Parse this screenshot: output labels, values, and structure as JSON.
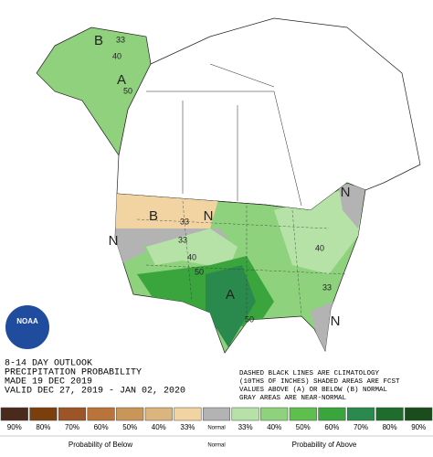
{
  "header": {
    "lines": [
      "8-14 DAY OUTLOOK",
      "PRECIPITATION PROBABILITY",
      "MADE  19 DEC 2019",
      "VALID  DEC 27, 2019 - JAN 02, 2020"
    ]
  },
  "note": {
    "lines": [
      "DASHED BLACK LINES ARE CLIMATOLOGY",
      "(10THS OF INCHES) SHADED AREAS ARE FCST",
      "VALUES ABOVE (A) OR BELOW (B) NORMAL",
      "GRAY AREAS ARE NEAR-NORMAL"
    ]
  },
  "logo": {
    "text": "NOAA"
  },
  "map_labels": [
    "B",
    "33",
    "40",
    "A",
    "50",
    "B",
    "33",
    "N",
    "N",
    "33",
    "40",
    "50",
    "A",
    "50",
    "N",
    "40",
    "33",
    "N"
  ],
  "legend": {
    "items": [
      {
        "label": "90%",
        "color": "#4a2a1c"
      },
      {
        "label": "80%",
        "color": "#7a3f0c"
      },
      {
        "label": "70%",
        "color": "#9c5528"
      },
      {
        "label": "60%",
        "color": "#b8743a"
      },
      {
        "label": "50%",
        "color": "#c99659"
      },
      {
        "label": "40%",
        "color": "#dcb47d"
      },
      {
        "label": "33%",
        "color": "#f1d4a2"
      },
      {
        "label": "Normal",
        "color": "#b3b3b3"
      },
      {
        "label": "33%",
        "color": "#b6e2a8"
      },
      {
        "label": "40%",
        "color": "#8ed27d"
      },
      {
        "label": "50%",
        "color": "#5ebf4e"
      },
      {
        "label": "60%",
        "color": "#3aa53c"
      },
      {
        "label": "70%",
        "color": "#2a8a4e"
      },
      {
        "label": "80%",
        "color": "#1f6c2c"
      },
      {
        "label": "90%",
        "color": "#1a4c1c"
      }
    ],
    "captions": [
      "Probability of Below",
      "Normal",
      "Probability of Above"
    ]
  }
}
